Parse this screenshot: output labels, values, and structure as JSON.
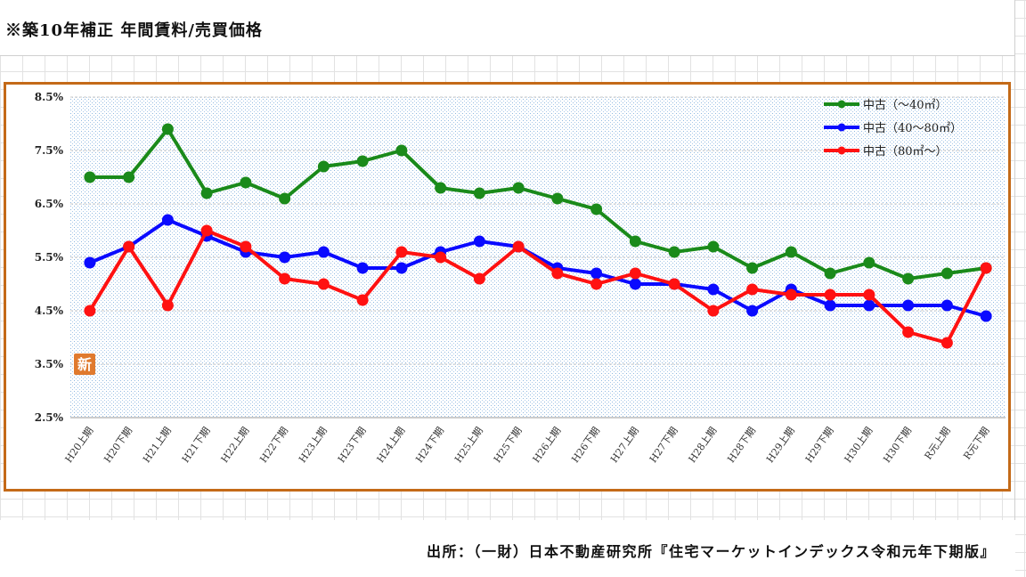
{
  "header": {
    "title": "※築10年補正 年間賃料/売買価格"
  },
  "footer": {
    "source": "出所：（一財）日本不動産研究所『住宅マーケットインデックス令和元年下期版』"
  },
  "new_badge": "新",
  "chart_data": {
    "type": "line",
    "title": "",
    "xlabel": "",
    "ylabel": "",
    "ylim": [
      2.5,
      8.5
    ],
    "y_ticks": [
      "2.5%",
      "3.5%",
      "4.5%",
      "5.5%",
      "6.5%",
      "7.5%",
      "8.5%"
    ],
    "y_tick_values": [
      2.5,
      3.5,
      4.5,
      5.5,
      6.5,
      7.5,
      8.5
    ],
    "grid": true,
    "legend_position": "top-right",
    "categories": [
      "H20上期",
      "H20下期",
      "H21上期",
      "H21下期",
      "H22上期",
      "H22下期",
      "H23上期",
      "H23下期",
      "H24上期",
      "H24下期",
      "H25上期",
      "H25下期",
      "H26上期",
      "H26下期",
      "H27上期",
      "H27下期",
      "H28上期",
      "H28下期",
      "H29上期",
      "H29下期",
      "H30上期",
      "H30下期",
      "R元上期",
      "R元下期"
    ],
    "series": [
      {
        "name": "中古（～40㎡）",
        "color": "#1a8a1a",
        "values": [
          7.0,
          7.0,
          7.9,
          6.7,
          6.9,
          6.6,
          7.2,
          7.3,
          7.5,
          6.8,
          6.7,
          6.8,
          6.6,
          6.4,
          5.8,
          5.6,
          5.7,
          5.3,
          5.6,
          5.2,
          5.4,
          5.1,
          5.2,
          5.3
        ]
      },
      {
        "name": "中古（40～80㎡）",
        "color": "#0a0aff",
        "values": [
          5.4,
          5.7,
          6.2,
          5.9,
          5.6,
          5.5,
          5.6,
          5.3,
          5.3,
          5.6,
          5.8,
          5.7,
          5.3,
          5.2,
          5.0,
          5.0,
          4.9,
          4.5,
          4.9,
          4.6,
          4.6,
          4.6,
          4.6,
          4.4
        ]
      },
      {
        "name": "中古（80㎡～）",
        "color": "#ff1111",
        "values": [
          4.5,
          5.7,
          4.6,
          6.0,
          5.7,
          5.1,
          5.0,
          4.7,
          5.6,
          5.5,
          5.1,
          5.7,
          5.2,
          5.0,
          5.2,
          5.0,
          4.5,
          4.9,
          4.8,
          4.8,
          4.8,
          4.1,
          3.9,
          5.3
        ]
      }
    ]
  }
}
